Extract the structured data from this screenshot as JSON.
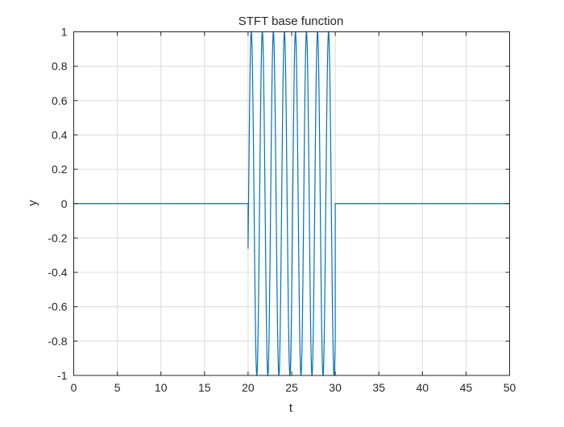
{
  "chart_data": {
    "type": "line",
    "title": "STFT base function",
    "xlabel": "t",
    "ylabel": "y",
    "xlim": [
      0,
      50
    ],
    "ylim": [
      -1,
      1
    ],
    "xticks": [
      "0",
      "5",
      "10",
      "15",
      "20",
      "25",
      "30",
      "35",
      "40",
      "45",
      "50"
    ],
    "yticks": [
      "-1",
      "-0.8",
      "-0.6",
      "-0.4",
      "-0.2",
      "0",
      "0.2",
      "0.4",
      "0.6",
      "0.8",
      "1"
    ],
    "grid": true,
    "series_color": "#0072BD",
    "series": [
      {
        "function": "y = cos(2*pi*f*(t - t_peak)) for t_start <= t <= t_end, else 0",
        "t_start": 20,
        "t_end": 30,
        "frequency": 0.79,
        "t_peak": 20.37,
        "value_outside": 0
      }
    ]
  }
}
